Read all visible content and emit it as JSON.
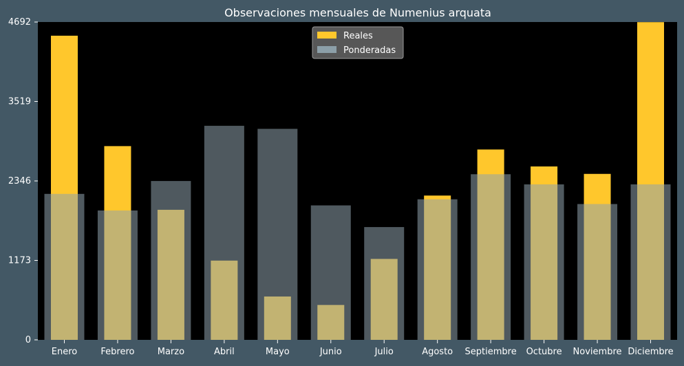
{
  "chart_data": {
    "type": "bar",
    "title": "Observaciones mensuales de Numenius arquata",
    "xlabel": "",
    "ylabel": "",
    "categories": [
      "Enero",
      "Febrero",
      "Marzo",
      "Abril",
      "Mayo",
      "Junio",
      "Julio",
      "Agosto",
      "Septiembre",
      "Octubre",
      "Noviembre",
      "Diciembre"
    ],
    "series": [
      {
        "name": "Reales",
        "color": "#ffc72c",
        "values": [
          4490,
          2860,
          1920,
          1170,
          640,
          515,
          1195,
          2130,
          2810,
          2560,
          2450,
          4690
        ]
      },
      {
        "name": "Ponderadas",
        "color": "#8fa3ad",
        "values": [
          2155,
          1910,
          2345,
          3160,
          3115,
          1985,
          1665,
          2075,
          2445,
          2295,
          2005,
          2295
        ]
      }
    ],
    "ylim": [
      0,
      4692
    ],
    "yticks": [
      0,
      1173,
      2346,
      3519,
      4692
    ],
    "grid": false,
    "legend_position": "top-center",
    "colors": {
      "background": "#435865",
      "plot_background": "#000000",
      "text": "#ffffff",
      "overlap": "#d4cf8c"
    }
  }
}
